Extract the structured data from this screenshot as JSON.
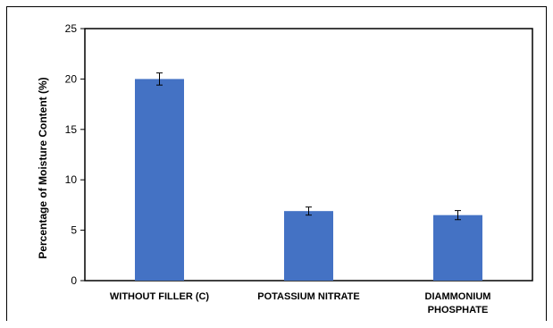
{
  "chart_data": {
    "type": "bar",
    "categories": [
      "WITHOUT FILLER (C)",
      "POTASSIUM NITRATE",
      "DIAMMONIUM PHOSPHATE"
    ],
    "category_lines": [
      [
        "WITHOUT FILLER (C)"
      ],
      [
        "POTASSIUM NITRATE"
      ],
      [
        "DIAMMONIUM",
        "PHOSPHATE"
      ]
    ],
    "values": [
      20.0,
      6.9,
      6.5
    ],
    "error": [
      0.6,
      0.4,
      0.45
    ],
    "title": "",
    "xlabel": "",
    "ylabel": "Percentage of Moisture Content (%)",
    "ylim": [
      0,
      25
    ],
    "yticks": [
      0,
      5,
      10,
      15,
      20,
      25
    ],
    "grid": false,
    "legend": "none",
    "bar_color": "#4472C4"
  }
}
